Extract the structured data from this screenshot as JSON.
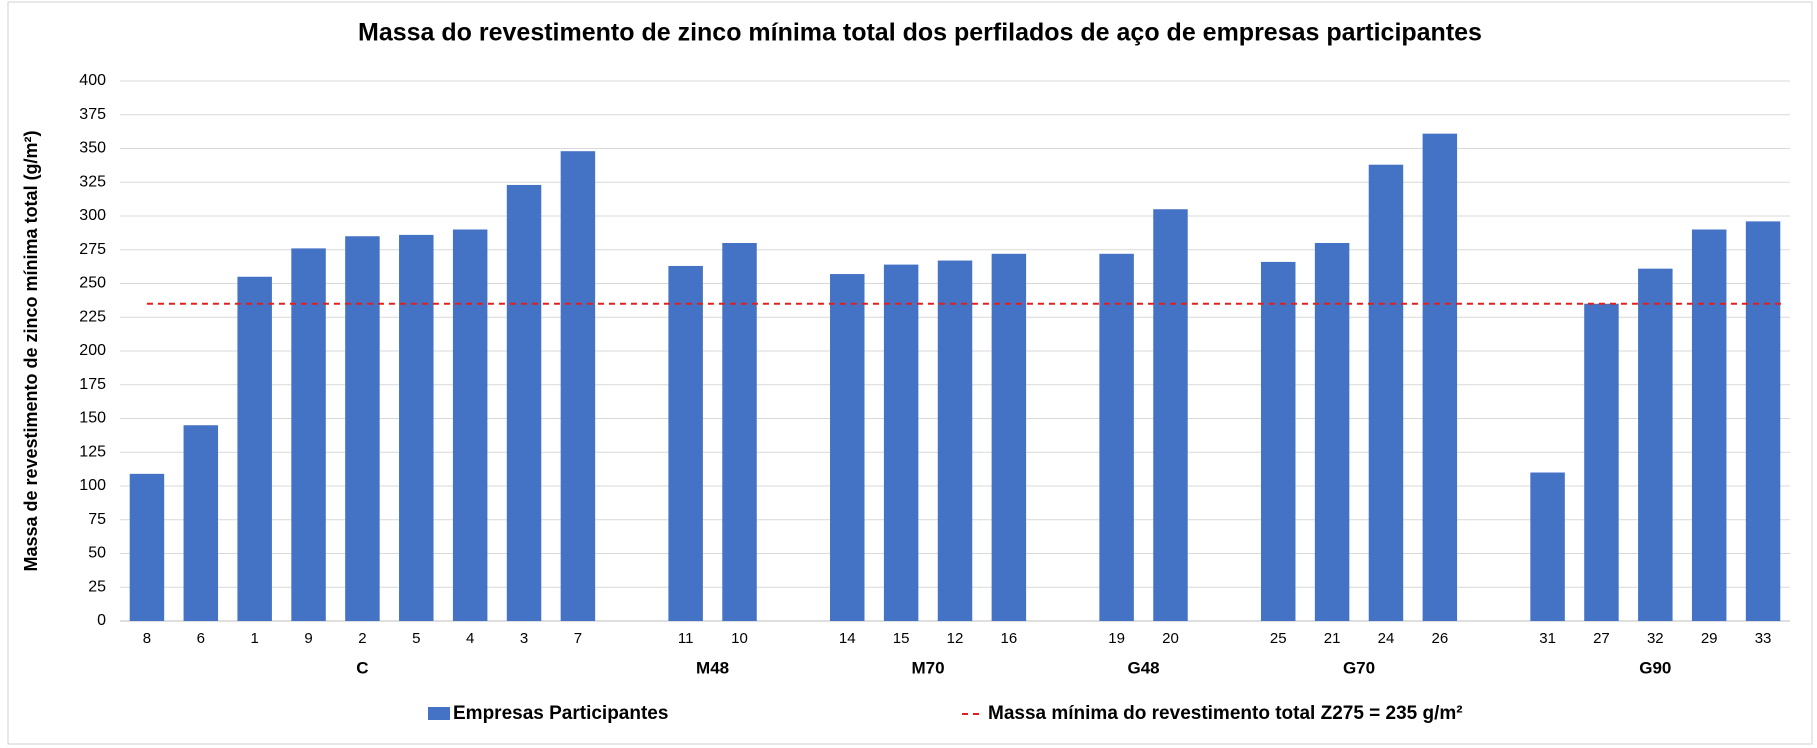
{
  "chart_data": {
    "type": "bar",
    "title": "Massa do revestimento de zinco mínima total dos perfilados de aço de empresas participantes",
    "y_label": "Massa de revestimento de zinco mínima total (g/m²)",
    "categories": [
      "8",
      "6",
      "1",
      "9",
      "2",
      "5",
      "4",
      "3",
      "7",
      null,
      "11",
      "10",
      null,
      "14",
      "15",
      "12",
      "16",
      null,
      "19",
      "20",
      null,
      "25",
      "21",
      "24",
      "26",
      null,
      "31",
      "27",
      "32",
      "29",
      "33"
    ],
    "groups": [
      "C",
      "M48",
      "M70",
      "G48",
      "G70",
      "G90"
    ],
    "series": [
      {
        "name": "Empresas Participantes",
        "color": "#4472c4",
        "values": [
          109,
          145,
          255,
          276,
          285,
          286,
          290,
          323,
          348,
          null,
          263,
          280,
          null,
          257,
          264,
          267,
          272,
          null,
          272,
          305,
          null,
          266,
          280,
          338,
          361,
          null,
          110,
          235,
          261,
          290,
          296
        ]
      }
    ],
    "reference_line": {
      "name": "Massa mínima do revestimento total Z275 = 235 g/m²",
      "value": 235,
      "color": "#e0201f"
    },
    "ylim": [
      0,
      400
    ],
    "yticks": [
      0,
      25,
      50,
      75,
      100,
      125,
      150,
      175,
      200,
      225,
      250,
      275,
      300,
      325,
      350,
      375,
      400
    ],
    "grid": true,
    "legend": "bottom"
  }
}
